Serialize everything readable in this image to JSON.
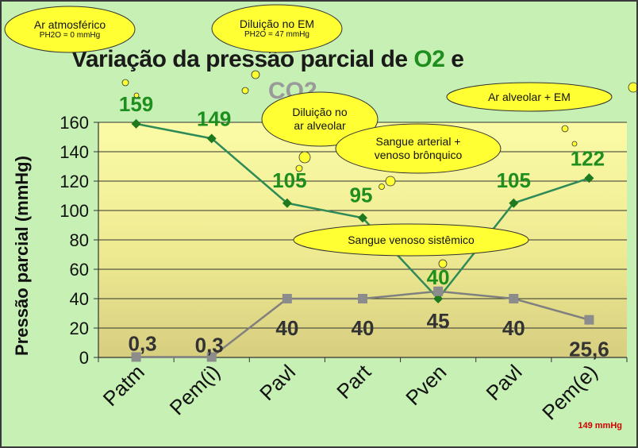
{
  "title": {
    "main": "Variação da pressão parcial de ",
    "o2": "O2",
    "tail": " e",
    "line2": "CO2"
  },
  "ylabel": "Pressão parcial (mmHg)",
  "clouds": {
    "atm": {
      "line1": "Ar atmosférico",
      "sub": "PH2O = 0 mmHg"
    },
    "em": {
      "line1": "Diluição no EM",
      "sub": "PH2O = 47 mmHg"
    },
    "alv": {
      "line1": "Diluição no",
      "line2": "ar alveolar"
    },
    "art": {
      "line1": "Sangue arterial +",
      "line2": "venoso brônquico"
    },
    "ven": {
      "line1": "Sangue venoso sistêmico"
    },
    "arem": {
      "line1": "Ar alveolar + EM"
    }
  },
  "note": "149 mmHg",
  "chart_data": {
    "type": "line",
    "categories": [
      "Patm",
      "Pem(i)",
      "Pavl",
      "Part",
      "Pven",
      "Pavl",
      "Pem(e)"
    ],
    "ylim": [
      0,
      160
    ],
    "yticks": [
      "0",
      "20",
      "40",
      "60",
      "80",
      "100",
      "120",
      "140",
      "160"
    ],
    "series": [
      {
        "name": "O2",
        "color": "#2e8b57",
        "values": [
          159,
          149,
          105,
          95,
          40,
          105,
          122
        ],
        "labels": [
          "159",
          "149",
          "105",
          "95",
          "40",
          "105",
          "122"
        ]
      },
      {
        "name": "CO2",
        "color": "#808080",
        "values": [
          0.3,
          0.3,
          40,
          40,
          45,
          40,
          25.6
        ],
        "labels": [
          "0,3",
          "0,3",
          "40",
          "40",
          "45",
          "40",
          "25,6"
        ]
      }
    ]
  }
}
